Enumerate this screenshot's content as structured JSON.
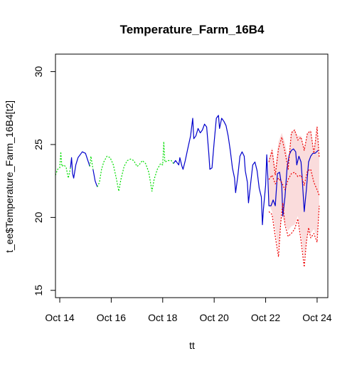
{
  "chart_data": {
    "type": "line",
    "title": "Temperature_Farm_16B4",
    "xlabel": "tt",
    "ylabel": "t_ee$Temperature_Farm_16B4[t2]",
    "xlim": [
      "2023-10-13 20:00",
      "2023-10-24 10:00"
    ],
    "ylim": [
      14.5,
      31.2
    ],
    "x_ticks": [
      {
        "date": "2023-10-14",
        "label": "Oct 14"
      },
      {
        "date": "2023-10-16",
        "label": "Oct 16"
      },
      {
        "date": "2023-10-18",
        "label": "Oct 18"
      },
      {
        "date": "2023-10-20",
        "label": "Oct 20"
      },
      {
        "date": "2023-10-22",
        "label": "Oct 22"
      },
      {
        "date": "2023-10-24",
        "label": "Oct 24"
      }
    ],
    "y_ticks": [
      15,
      20,
      25,
      30
    ],
    "grid": false,
    "legend": "none",
    "colors": {
      "observed": "#0000cc",
      "imputed": "#00dd00",
      "forecast": "#ee0000",
      "band": "#fadcdc"
    },
    "series": [
      {
        "style": "solid",
        "color": "#0000cc",
        "segments": [
          [
            [
              "2023-10-14 10:00",
              23.4
            ],
            [
              "2023-10-14 11:00",
              24.1
            ],
            [
              "2023-10-14 12:00",
              23.0
            ],
            [
              "2023-10-14 13:00",
              22.7
            ],
            [
              "2023-10-14 15:00",
              23.6
            ],
            [
              "2023-10-14 17:00",
              24.1
            ],
            [
              "2023-10-14 19:00",
              24.3
            ],
            [
              "2023-10-14 21:00",
              24.5
            ],
            [
              "2023-10-15 00:00",
              24.4
            ],
            [
              "2023-10-15 04:00",
              23.5
            ]
          ],
          [
            [
              "2023-10-15 07:00",
              23.3
            ],
            [
              "2023-10-15 09:00",
              22.5
            ],
            [
              "2023-10-15 11:00",
              22.1
            ]
          ],
          [
            [
              "2023-10-18 10:00",
              23.7
            ],
            [
              "2023-10-18 12:00",
              23.9
            ],
            [
              "2023-10-18 15:00",
              23.6
            ],
            [
              "2023-10-18 16:00",
              24.1
            ],
            [
              "2023-10-18 18:00",
              23.5
            ],
            [
              "2023-10-18 19:00",
              23.3
            ],
            [
              "2023-10-18 21:00",
              23.9
            ],
            [
              "2023-10-18 23:00",
              24.6
            ],
            [
              "2023-10-19 02:00",
              25.6
            ],
            [
              "2023-10-19 04:00",
              26.8
            ],
            [
              "2023-10-19 05:00",
              25.4
            ],
            [
              "2023-10-19 07:00",
              25.6
            ],
            [
              "2023-10-19 09:00",
              26.1
            ],
            [
              "2023-10-19 11:00",
              25.8
            ],
            [
              "2023-10-19 13:00",
              26.0
            ],
            [
              "2023-10-19 15:00",
              26.4
            ],
            [
              "2023-10-19 17:00",
              26.2
            ],
            [
              "2023-10-19 19:00",
              24.4
            ],
            [
              "2023-10-19 20:00",
              23.3
            ],
            [
              "2023-10-19 22:00",
              23.4
            ],
            [
              "2023-10-20 00:00",
              25.2
            ],
            [
              "2023-10-20 02:00",
              26.8
            ],
            [
              "2023-10-20 04:00",
              27.0
            ],
            [
              "2023-10-20 05:00",
              26.1
            ],
            [
              "2023-10-20 07:00",
              26.8
            ],
            [
              "2023-10-20 09:00",
              26.6
            ],
            [
              "2023-10-20 11:00",
              26.3
            ],
            [
              "2023-10-20 13:00",
              25.6
            ],
            [
              "2023-10-20 15:00",
              24.6
            ],
            [
              "2023-10-20 17:00",
              23.4
            ],
            [
              "2023-10-20 19:00",
              22.7
            ],
            [
              "2023-10-20 20:00",
              21.7
            ],
            [
              "2023-10-20 22:00",
              22.8
            ],
            [
              "2023-10-21 00:00",
              24.2
            ],
            [
              "2023-10-21 02:00",
              24.5
            ],
            [
              "2023-10-21 04:00",
              24.2
            ],
            [
              "2023-10-21 05:00",
              23.2
            ],
            [
              "2023-10-21 07:00",
              22.4
            ],
            [
              "2023-10-21 08:00",
              21.0
            ],
            [
              "2023-10-21 10:00",
              22.3
            ],
            [
              "2023-10-21 12:00",
              23.6
            ],
            [
              "2023-10-21 14:00",
              23.8
            ],
            [
              "2023-10-21 16:00",
              23.2
            ],
            [
              "2023-10-21 18:00",
              22.0
            ],
            [
              "2023-10-21 20:00",
              21.4
            ],
            [
              "2023-10-21 21:00",
              19.5
            ],
            [
              "2023-10-21 22:00",
              20.6
            ],
            [
              "2023-10-22 00:00",
              22.2
            ],
            [
              "2023-10-22 01:00",
              24.3
            ],
            [
              "2023-10-22 02:00",
              22.8
            ],
            [
              "2023-10-22 03:00",
              20.8
            ],
            [
              "2023-10-22 05:00",
              20.8
            ],
            [
              "2023-10-22 07:00",
              21.2
            ],
            [
              "2023-10-22 09:00",
              20.8
            ],
            [
              "2023-10-22 11:00",
              23.0
            ],
            [
              "2023-10-22 13:00",
              23.1
            ],
            [
              "2023-10-22 14:00",
              22.6
            ],
            [
              "2023-10-22 15:00",
              22.2
            ],
            [
              "2023-10-22 16:00",
              20.1
            ],
            [
              "2023-10-22 18:00",
              21.4
            ],
            [
              "2023-10-22 20:00",
              23.4
            ],
            [
              "2023-10-22 22:00",
              24.3
            ],
            [
              "2023-10-23 00:00",
              24.6
            ],
            [
              "2023-10-23 02:00",
              24.7
            ],
            [
              "2023-10-23 04:00",
              24.5
            ],
            [
              "2023-10-23 05:00",
              23.6
            ],
            [
              "2023-10-23 07:00",
              24.2
            ],
            [
              "2023-10-23 09:00",
              23.8
            ],
            [
              "2023-10-23 10:00",
              22.8
            ],
            [
              "2023-10-23 11:00",
              21.6
            ],
            [
              "2023-10-23 12:00",
              20.4
            ],
            [
              "2023-10-23 14:00",
              21.9
            ],
            [
              "2023-10-23 16:00",
              23.8
            ],
            [
              "2023-10-23 18:00",
              24.2
            ],
            [
              "2023-10-23 20:00",
              24.4
            ],
            [
              "2023-10-23 22:00",
              24.4
            ],
            [
              "2023-10-24 01:00",
              24.6
            ]
          ]
        ]
      },
      {
        "style": "dotted",
        "color": "#00dd00",
        "segments": [
          [
            [
              "2023-10-13 20:00",
              22.9
            ],
            [
              "2023-10-13 22:00",
              23.3
            ],
            [
              "2023-10-14 00:00",
              23.4
            ],
            [
              "2023-10-14 01:00",
              24.5
            ],
            [
              "2023-10-14 02:00",
              23.5
            ],
            [
              "2023-10-14 04:00",
              23.6
            ],
            [
              "2023-10-14 06:00",
              23.4
            ],
            [
              "2023-10-14 08:00",
              22.7
            ],
            [
              "2023-10-14 10:00",
              23.4
            ]
          ],
          [
            [
              "2023-10-15 04:00",
              23.5
            ],
            [
              "2023-10-15 05:00",
              24.2
            ],
            [
              "2023-10-15 07:00",
              23.3
            ]
          ],
          [
            [
              "2023-10-15 11:00",
              22.1
            ],
            [
              "2023-10-15 13:00",
              22.4
            ],
            [
              "2023-10-15 15:00",
              23.3
            ],
            [
              "2023-10-15 17:00",
              23.8
            ],
            [
              "2023-10-15 20:00",
              24.2
            ],
            [
              "2023-10-15 23:00",
              24.1
            ],
            [
              "2023-10-16 02:00",
              23.6
            ],
            [
              "2023-10-16 05:00",
              22.6
            ],
            [
              "2023-10-16 07:00",
              21.8
            ],
            [
              "2023-10-16 09:00",
              22.6
            ],
            [
              "2023-10-16 12:00",
              23.5
            ],
            [
              "2023-10-16 15:00",
              23.9
            ],
            [
              "2023-10-16 18:00",
              24.0
            ],
            [
              "2023-10-16 21:00",
              23.9
            ],
            [
              "2023-10-17 00:00",
              23.5
            ],
            [
              "2023-10-17 02:00",
              23.6
            ],
            [
              "2023-10-17 05:00",
              23.9
            ],
            [
              "2023-10-17 08:00",
              23.7
            ],
            [
              "2023-10-17 11:00",
              23.1
            ],
            [
              "2023-10-17 14:00",
              21.8
            ],
            [
              "2023-10-17 16:00",
              22.6
            ],
            [
              "2023-10-17 19:00",
              23.3
            ],
            [
              "2023-10-17 22:00",
              23.7
            ],
            [
              "2023-10-18 00:00",
              23.6
            ],
            [
              "2023-10-18 01:00",
              25.2
            ],
            [
              "2023-10-18 02:00",
              23.8
            ],
            [
              "2023-10-18 05:00",
              23.9
            ],
            [
              "2023-10-18 08:00",
              23.9
            ],
            [
              "2023-10-18 10:00",
              23.7
            ]
          ]
        ]
      },
      {
        "style": "dotted",
        "color": "#ee0000",
        "segments": [
          [
            [
              "2023-10-22 03:00",
              23.8
            ],
            [
              "2023-10-22 06:00",
              24.6
            ],
            [
              "2023-10-22 09:00",
              22.9
            ],
            [
              "2023-10-22 12:00",
              24.7
            ],
            [
              "2023-10-22 15:00",
              25.5
            ],
            [
              "2023-10-22 18:00",
              24.5
            ],
            [
              "2023-10-22 21:00",
              23.3
            ],
            [
              "2023-10-23 00:00",
              25.8
            ],
            [
              "2023-10-23 03:00",
              26.0
            ],
            [
              "2023-10-23 06:00",
              25.3
            ],
            [
              "2023-10-23 09:00",
              25.5
            ],
            [
              "2023-10-23 12:00",
              24.6
            ],
            [
              "2023-10-23 15:00",
              25.8
            ],
            [
              "2023-10-23 18:00",
              25.9
            ],
            [
              "2023-10-23 21:00",
              24.4
            ],
            [
              "2023-10-24 00:00",
              26.2
            ],
            [
              "2023-10-24 02:00",
              24.1
            ]
          ],
          [
            [
              "2023-10-22 03:00",
              22.6
            ],
            [
              "2023-10-22 06:00",
              22.9
            ],
            [
              "2023-10-22 09:00",
              22.3
            ],
            [
              "2023-10-22 12:00",
              22.7
            ],
            [
              "2023-10-22 15:00",
              22.4
            ],
            [
              "2023-10-22 18:00",
              21.9
            ],
            [
              "2023-10-22 21:00",
              22.6
            ],
            [
              "2023-10-23 00:00",
              23.0
            ],
            [
              "2023-10-23 03:00",
              23.1
            ],
            [
              "2023-10-23 06:00",
              22.8
            ],
            [
              "2023-10-23 09:00",
              22.9
            ],
            [
              "2023-10-23 12:00",
              22.2
            ],
            [
              "2023-10-23 15:00",
              23.2
            ],
            [
              "2023-10-23 18:00",
              23.3
            ],
            [
              "2023-10-23 21:00",
              22.4
            ],
            [
              "2023-10-24 00:00",
              21.9
            ],
            [
              "2023-10-24 02:00",
              21.5
            ]
          ],
          [
            [
              "2023-10-22 03:00",
              20.4
            ],
            [
              "2023-10-22 06:00",
              20.2
            ],
            [
              "2023-10-22 09:00",
              18.7
            ],
            [
              "2023-10-22 12:00",
              17.3
            ],
            [
              "2023-10-22 14:00",
              19.6
            ],
            [
              "2023-10-22 16:00",
              21.0
            ],
            [
              "2023-10-22 18:00",
              19.5
            ],
            [
              "2023-10-22 21:00",
              18.7
            ],
            [
              "2023-10-23 00:00",
              18.9
            ],
            [
              "2023-10-23 03:00",
              19.2
            ],
            [
              "2023-10-23 06:00",
              19.9
            ],
            [
              "2023-10-23 09:00",
              18.4
            ],
            [
              "2023-10-23 12:00",
              16.6
            ],
            [
              "2023-10-23 14:00",
              18.3
            ],
            [
              "2023-10-23 16:00",
              19.3
            ],
            [
              "2023-10-23 18:00",
              18.6
            ],
            [
              "2023-10-23 21:00",
              18.9
            ],
            [
              "2023-10-24 00:00",
              18.3
            ],
            [
              "2023-10-24 02:00",
              20.8
            ]
          ]
        ]
      }
    ],
    "band": {
      "color": "#fadcdc",
      "upper": [
        [
          "2023-10-22 03:00",
          24.0
        ],
        [
          "2023-10-22 06:00",
          24.8
        ],
        [
          "2023-10-22 09:00",
          23.4
        ],
        [
          "2023-10-22 12:00",
          25.2
        ],
        [
          "2023-10-22 15:00",
          25.8
        ],
        [
          "2023-10-22 18:00",
          25.1
        ],
        [
          "2023-10-22 21:00",
          24.0
        ],
        [
          "2023-10-23 00:00",
          25.9
        ],
        [
          "2023-10-23 03:00",
          26.0
        ],
        [
          "2023-10-23 06:00",
          25.6
        ],
        [
          "2023-10-23 09:00",
          25.6
        ],
        [
          "2023-10-23 12:00",
          24.8
        ],
        [
          "2023-10-23 15:00",
          25.8
        ],
        [
          "2023-10-23 18:00",
          26.0
        ],
        [
          "2023-10-23 21:00",
          24.6
        ],
        [
          "2023-10-24 00:00",
          26.2
        ],
        [
          "2023-10-24 02:00",
          24.3
        ]
      ],
      "lower": [
        [
          "2023-10-22 03:00",
          20.9
        ],
        [
          "2023-10-22 06:00",
          20.4
        ],
        [
          "2023-10-22 09:00",
          19.2
        ],
        [
          "2023-10-22 12:00",
          17.8
        ],
        [
          "2023-10-22 15:00",
          20.1
        ],
        [
          "2023-10-22 18:00",
          19.6
        ],
        [
          "2023-10-22 21:00",
          19.1
        ],
        [
          "2023-10-23 00:00",
          19.4
        ],
        [
          "2023-10-23 03:00",
          19.5
        ],
        [
          "2023-10-23 06:00",
          20.1
        ],
        [
          "2023-10-23 09:00",
          18.8
        ],
        [
          "2023-10-23 12:00",
          17.2
        ],
        [
          "2023-10-23 15:00",
          18.9
        ],
        [
          "2023-10-23 18:00",
          18.9
        ],
        [
          "2023-10-23 21:00",
          19.2
        ],
        [
          "2023-10-24 00:00",
          18.6
        ],
        [
          "2023-10-24 02:00",
          20.8
        ]
      ]
    }
  }
}
